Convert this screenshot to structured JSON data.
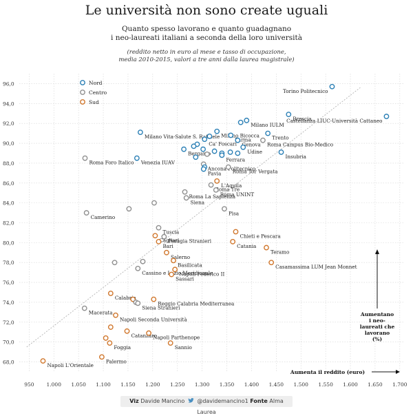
{
  "title": "Le università non sono create uguali",
  "subtitle_line1": "Quanto spesso lavorano e quanto guadagnano",
  "subtitle_line2": "i neo-laureati italiani a seconda della loro università",
  "note_line1": "(reddito netto in euro al mese e tasso di occupazione,",
  "note_line2": "media 2010-2015, valori a tre anni dalla laurea magistrale)",
  "footer": {
    "viz_label": "Viz",
    "author": "Davide Mancino",
    "twitter_icon": "twitter-bird-icon",
    "handle": "@davidemancino1",
    "source_label": "Fonte",
    "source": "Alma Laurea"
  },
  "colors": {
    "Nord": "#2a7fb5",
    "Centro": "#8f8f8f",
    "Sud": "#d0762b",
    "grid": "#d4d4d4",
    "trend": "#aaaaaa"
  },
  "chart_data": {
    "type": "scatter",
    "xlim": [
      930,
      1710
    ],
    "ylim": [
      67,
      97
    ],
    "x_ticks": [
      950,
      1000,
      1050,
      1100,
      1150,
      1200,
      1250,
      1300,
      1350,
      1400,
      1450,
      1500,
      1550,
      1600,
      1650,
      1700
    ],
    "x_tick_labels": [
      "950",
      "1.000",
      "1.050",
      "1.100",
      "1.150",
      "1.200",
      "1.250",
      "1.300",
      "1.350",
      "1.400",
      "1.450",
      "1.500",
      "1.550",
      "1.600",
      "1.650",
      "1.700"
    ],
    "y_ticks": [
      68,
      70,
      72,
      74,
      76,
      78,
      80,
      82,
      84,
      86,
      88,
      90,
      92,
      94,
      96
    ],
    "y_tick_labels": [
      "68,0",
      "70,0",
      "72,0",
      "74,0",
      "76,0",
      "78,0",
      "80,0",
      "82,0",
      "84,0",
      "86,0",
      "88,0",
      "90,0",
      "92,0",
      "94,0",
      "96,0"
    ],
    "xlabel": "Aumenta il reddito (euro)",
    "ylabel": [
      "Aumentano",
      "i neo-",
      "laureati che",
      "lavorano",
      "(%)"
    ],
    "grid": true,
    "legend_position": "top-left",
    "legend": [
      "Nord",
      "Centro",
      "Sud"
    ],
    "trend_line": {
      "from": [
        945,
        69.5
      ],
      "to": [
        1620,
        95.6
      ]
    },
    "points": [
      {
        "label": "Torino Politecnico",
        "group": "Nord",
        "x": 1563,
        "y": 95.7
      },
      {
        "label": "Castellanza LIUC-Università Cattaneo",
        "group": "Nord",
        "x": 1673,
        "y": 92.7
      },
      {
        "label": "Brescia",
        "group": "Nord",
        "x": 1475,
        "y": 92.9
      },
      {
        "label": "Milano IULM",
        "group": "Nord",
        "x": 1390,
        "y": 92.3
      },
      {
        "label": "",
        "group": "Nord",
        "x": 1378,
        "y": 92.1
      },
      {
        "label": "Milano Bicocca",
        "group": "Nord",
        "x": 1330,
        "y": 91.2
      },
      {
        "label": "Parma",
        "group": "Nord",
        "x": 1358,
        "y": 90.8
      },
      {
        "label": "Trento",
        "group": "Nord",
        "x": 1433,
        "y": 91.0
      },
      {
        "label": "Milano Vita-Salute S. Raffaele",
        "group": "Nord",
        "x": 1175,
        "y": 91.1
      },
      {
        "label": "Ca' Foscari",
        "group": "Nord",
        "x": 1305,
        "y": 90.4
      },
      {
        "label": "",
        "group": "Nord",
        "x": 1315,
        "y": 90.7
      },
      {
        "label": "Genova",
        "group": "Nord",
        "x": 1372,
        "y": 90.3
      },
      {
        "label": "Roma Campus Bio-Medico",
        "group": "Centro",
        "x": 1423,
        "y": 90.3
      },
      {
        "label": "Udine",
        "group": "Nord",
        "x": 1383,
        "y": 89.6
      },
      {
        "label": "",
        "group": "Nord",
        "x": 1290,
        "y": 89.9
      },
      {
        "label": "",
        "group": "Nord",
        "x": 1283,
        "y": 89.7
      },
      {
        "label": "",
        "group": "Nord",
        "x": 1302,
        "y": 89.4
      },
      {
        "label": "Bergamo",
        "group": "Nord",
        "x": 1263,
        "y": 89.4
      },
      {
        "label": "",
        "group": "Nord",
        "x": 1325,
        "y": 89.2
      },
      {
        "label": "",
        "group": "Nord",
        "x": 1340,
        "y": 89.0
      },
      {
        "label": "",
        "group": "Nord",
        "x": 1357,
        "y": 89.1
      },
      {
        "label": "",
        "group": "Nord",
        "x": 1372,
        "y": 89.0
      },
      {
        "label": "Insubria",
        "group": "Nord",
        "x": 1460,
        "y": 89.1
      },
      {
        "label": "Ferrara",
        "group": "Nord",
        "x": 1340,
        "y": 88.8
      },
      {
        "label": "Roma Foro Italico",
        "group": "Centro",
        "x": 1063,
        "y": 88.5
      },
      {
        "label": "Venezia IUAV",
        "group": "Nord",
        "x": 1168,
        "y": 88.5
      },
      {
        "label": "",
        "group": "Nord",
        "x": 1287,
        "y": 88.6
      },
      {
        "label": "",
        "group": "Centro",
        "x": 1310,
        "y": 88.9
      },
      {
        "label": "Ancona Politecnico",
        "group": "Centro",
        "x": 1303,
        "y": 87.9
      },
      {
        "label": "",
        "group": "Nord",
        "x": 1305,
        "y": 87.6
      },
      {
        "label": "Roma Tor Vergata",
        "group": "Centro",
        "x": 1353,
        "y": 87.6
      },
      {
        "label": "Pavia",
        "group": "Nord",
        "x": 1303,
        "y": 87.4
      },
      {
        "label": "L'Aquila",
        "group": "Sud",
        "x": 1330,
        "y": 86.2
      },
      {
        "label": "Roma Tre",
        "group": "Centro",
        "x": 1318,
        "y": 85.8
      },
      {
        "label": "Roma UNINT",
        "group": "Centro",
        "x": 1328,
        "y": 85.3
      },
      {
        "label": "Roma La Sapienza",
        "group": "Centro",
        "x": 1265,
        "y": 85.1
      },
      {
        "label": "Siena",
        "group": "Centro",
        "x": 1268,
        "y": 84.5
      },
      {
        "label": "",
        "group": "Centro",
        "x": 1203,
        "y": 84.0
      },
      {
        "label": "",
        "group": "Centro",
        "x": 1152,
        "y": 83.4
      },
      {
        "label": "Pisa",
        "group": "Centro",
        "x": 1345,
        "y": 83.4
      },
      {
        "label": "Camerino",
        "group": "Centro",
        "x": 1066,
        "y": 83.0
      },
      {
        "label": "Tuscia",
        "group": "Centro",
        "x": 1212,
        "y": 81.5
      },
      {
        "label": "Chieti e Pescara",
        "group": "Sud",
        "x": 1368,
        "y": 81.1
      },
      {
        "label": "Cagliari",
        "group": "Sud",
        "x": 1205,
        "y": 80.7
      },
      {
        "label": "Perugia Stranieri",
        "group": "Centro",
        "x": 1223,
        "y": 80.6
      },
      {
        "label": "Bari",
        "group": "Sud",
        "x": 1212,
        "y": 80.1
      },
      {
        "label": "Catania",
        "group": "Sud",
        "x": 1362,
        "y": 80.1
      },
      {
        "label": "Teramo",
        "group": "Sud",
        "x": 1430,
        "y": 79.5
      },
      {
        "label": "Salerno",
        "group": "Sud",
        "x": 1228,
        "y": 79.0
      },
      {
        "label": "Basilicata",
        "group": "Sud",
        "x": 1242,
        "y": 78.2
      },
      {
        "label": "",
        "group": "Centro",
        "x": 1123,
        "y": 78.0
      },
      {
        "label": "",
        "group": "Centro",
        "x": 1180,
        "y": 78.1
      },
      {
        "label": "Casamassima LUM Jean Monnet",
        "group": "Sud",
        "x": 1440,
        "y": 78.0
      },
      {
        "label": "Cassino e Lazio Meridionale",
        "group": "Centro",
        "x": 1170,
        "y": 77.4
      },
      {
        "label": "Napoli Federico II",
        "group": "Sud",
        "x": 1245,
        "y": 77.3
      },
      {
        "label": "Sassari",
        "group": "Sud",
        "x": 1238,
        "y": 76.8
      },
      {
        "label": "Calabria",
        "group": "Sud",
        "x": 1115,
        "y": 74.9
      },
      {
        "label": "",
        "group": "Sud",
        "x": 1160,
        "y": 74.3
      },
      {
        "label": "",
        "group": "Centro",
        "x": 1166,
        "y": 74.0
      },
      {
        "label": "Reggio Calabria Mediterranea",
        "group": "Sud",
        "x": 1202,
        "y": 74.3
      },
      {
        "label": "Siena Stranieri",
        "group": "Centro",
        "x": 1170,
        "y": 73.9
      },
      {
        "label": "Macerata",
        "group": "Centro",
        "x": 1062,
        "y": 73.4
      },
      {
        "label": "Napoli Seconda Università",
        "group": "Sud",
        "x": 1125,
        "y": 72.7
      },
      {
        "label": "",
        "group": "Sud",
        "x": 1115,
        "y": 71.5
      },
      {
        "label": "Catanzaro",
        "group": "Sud",
        "x": 1148,
        "y": 71.1
      },
      {
        "label": "Napoli Parthenope",
        "group": "Sud",
        "x": 1192,
        "y": 70.9
      },
      {
        "label": "",
        "group": "Sud",
        "x": 1105,
        "y": 70.4
      },
      {
        "label": "Foggia",
        "group": "Sud",
        "x": 1113,
        "y": 69.9
      },
      {
        "label": "Sannio",
        "group": "Sud",
        "x": 1236,
        "y": 69.9
      },
      {
        "label": "Napoli L'Orientale",
        "group": "Sud",
        "x": 978,
        "y": 68.1
      },
      {
        "label": "Palermo",
        "group": "Sud",
        "x": 1097,
        "y": 68.5
      }
    ]
  }
}
